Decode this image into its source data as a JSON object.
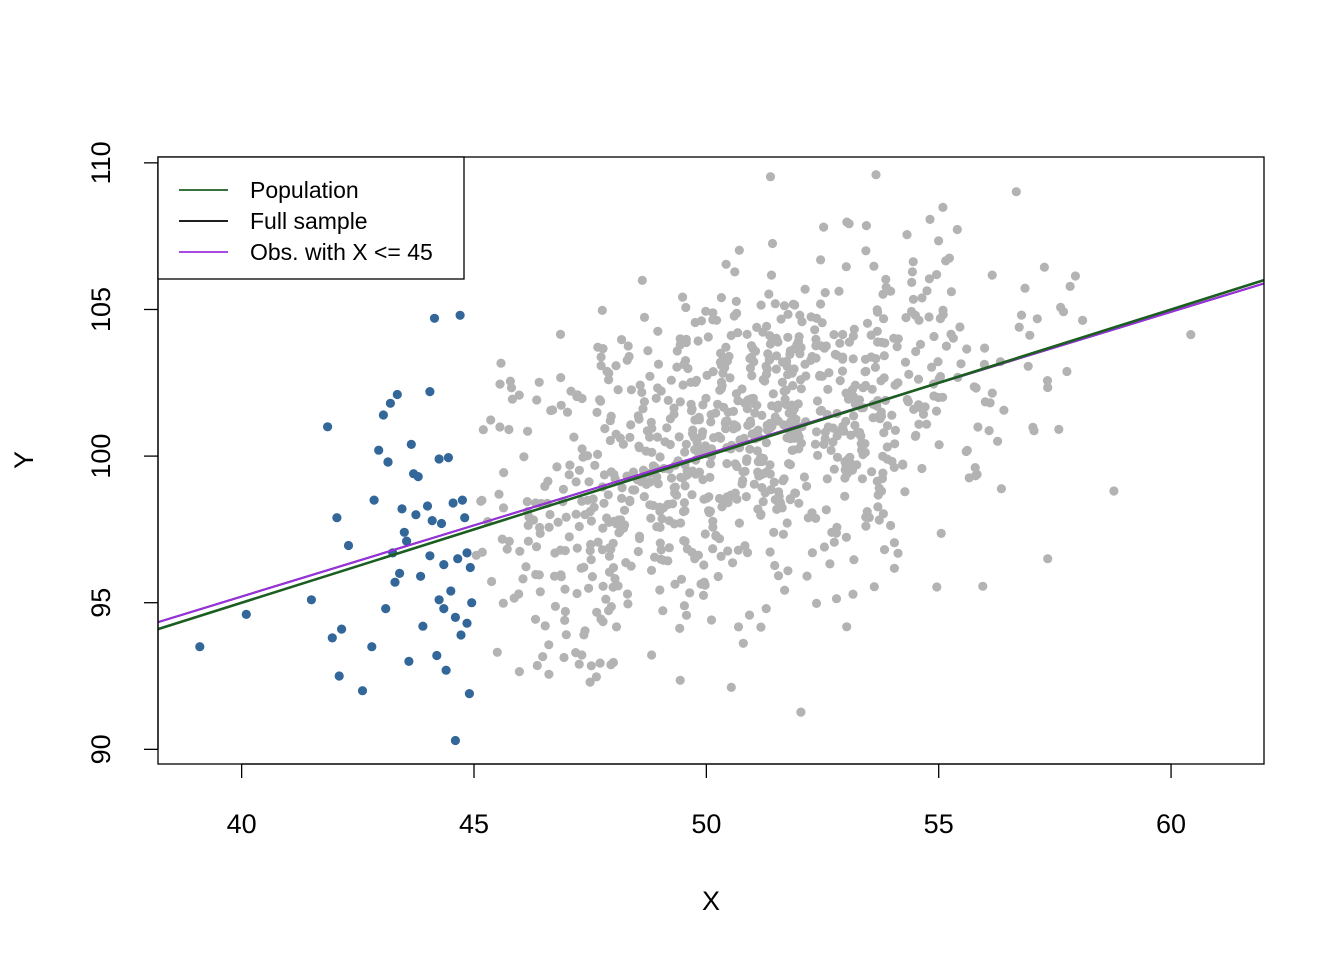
{
  "chart_data": {
    "type": "scatter",
    "title": "",
    "xlabel": "X",
    "ylabel": "Y",
    "xlim": [
      38.2,
      62
    ],
    "ylim": [
      89.5,
      110.2
    ],
    "xticks": [
      40,
      45,
      50,
      55,
      60
    ],
    "yticks": [
      90,
      95,
      100,
      105,
      110
    ],
    "grid": false,
    "legend_position": "top-left",
    "legend": [
      {
        "label": "Population",
        "color": "#1b5e20"
      },
      {
        "label": "Full sample",
        "color": "#000000"
      },
      {
        "label": "Obs. with X <= 45",
        "color": "#9b30e0"
      }
    ],
    "lines": [
      {
        "name": "Population",
        "color": "#1b5e20",
        "intercept": 75.0,
        "slope": 0.5
      },
      {
        "name": "Full sample",
        "color": "#000000",
        "intercept": 75.8,
        "slope": 0.4853
      },
      {
        "name": "Obs. with X <= 45",
        "color": "#9b30e0",
        "intercept": 75.8,
        "slope": 0.4853
      }
    ],
    "subset_points": {
      "color": "#336699",
      "x": [
        39.1,
        40.1,
        41.5,
        41.85,
        41.95,
        42.05,
        42.1,
        42.15,
        42.3,
        42.6,
        42.8,
        42.85,
        42.95,
        43.05,
        43.1,
        43.15,
        43.2,
        43.3,
        43.35,
        43.4,
        43.45,
        43.5,
        43.6,
        43.65,
        43.7,
        43.8,
        43.9,
        44.0,
        44.05,
        44.1,
        44.15,
        44.2,
        44.25,
        44.3,
        44.35,
        44.4,
        44.45,
        44.5,
        44.55,
        44.6,
        44.65,
        44.7,
        44.75,
        44.8,
        44.85,
        44.9,
        44.92,
        44.95,
        43.15,
        43.25,
        43.55,
        43.85,
        44.25,
        44.35,
        44.6,
        44.72,
        44.85,
        44.05,
        43.75
      ],
      "y": [
        93.5,
        94.6,
        95.1,
        101.0,
        93.8,
        97.9,
        92.5,
        94.1,
        96.95,
        92.0,
        93.5,
        98.5,
        100.2,
        101.4,
        94.8,
        99.8,
        101.8,
        95.7,
        102.1,
        96.0,
        98.2,
        97.4,
        93.0,
        100.4,
        99.4,
        99.3,
        94.2,
        98.3,
        102.2,
        97.8,
        104.7,
        93.2,
        99.9,
        97.7,
        96.3,
        92.7,
        99.95,
        95.4,
        98.4,
        90.3,
        96.5,
        104.8,
        98.5,
        97.9,
        96.7,
        91.9,
        96.2,
        95.0,
        99.8,
        96.7,
        97.1,
        95.9,
        95.1,
        94.8,
        94.5,
        93.9,
        94.3,
        96.6,
        98.0
      ]
    },
    "other_points": {
      "color": "#b3b3b3",
      "count": 940,
      "x_mean": 50.6,
      "x_sd": 3.0,
      "y_note": "bulk of sample with X > 45"
    }
  }
}
